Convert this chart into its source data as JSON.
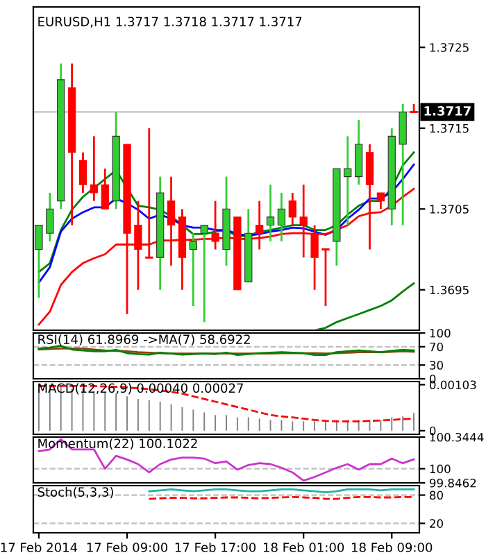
{
  "chart_data": [
    {
      "type": "candlestick",
      "title": "EURUSD,H1 1.3717 1.3718 1.3717 1.3717",
      "categories": [
        null,
        null,
        null,
        null,
        null,
        null,
        null,
        null,
        null,
        null,
        null,
        null,
        null,
        null,
        null,
        null,
        null,
        null,
        null,
        null,
        null,
        null,
        null,
        null,
        null,
        null,
        null,
        null,
        null,
        null,
        null,
        null,
        null,
        null,
        null
      ],
      "ohlc": [
        [
          1.37,
          1.3703,
          1.3694,
          1.3703
        ],
        [
          1.3702,
          1.3707,
          1.3701,
          1.3705
        ],
        [
          1.3706,
          1.3723,
          1.3705,
          1.3721
        ],
        [
          1.372,
          1.3723,
          1.3703,
          1.3712
        ],
        [
          1.3711,
          1.3712,
          1.3707,
          1.3708
        ],
        [
          1.3708,
          1.3714,
          1.3706,
          1.3707
        ],
        [
          1.3708,
          1.371,
          1.3705,
          1.3705
        ],
        [
          1.3706,
          1.3717,
          1.3705,
          1.3714
        ],
        [
          1.3713,
          1.3713,
          1.3692,
          1.3702
        ],
        [
          1.3703,
          1.3706,
          1.3695,
          1.37
        ],
        [
          1.3699,
          1.3715,
          1.3699,
          1.3699
        ],
        [
          1.3699,
          1.3709,
          1.3695,
          1.3707
        ],
        [
          1.3706,
          1.3709,
          1.3698,
          1.3703
        ],
        [
          1.3704,
          1.3705,
          1.3695,
          1.3699
        ],
        [
          1.37,
          1.3702,
          1.3693,
          1.3701
        ],
        [
          1.3702,
          1.3703,
          1.3691,
          1.3703
        ],
        [
          1.3702,
          1.3706,
          1.37,
          1.3701
        ],
        [
          1.37,
          1.3709,
          1.3698,
          1.3705
        ],
        [
          1.3704,
          1.3704,
          1.3695,
          1.3695
        ],
        [
          1.3696,
          1.3705,
          1.3696,
          1.3702
        ],
        [
          1.3703,
          1.3706,
          1.37,
          1.3702
        ],
        [
          1.3703,
          1.3708,
          1.3701,
          1.3704
        ],
        [
          1.3703,
          1.3707,
          1.3701,
          1.3705
        ],
        [
          1.3706,
          1.3707,
          1.3703,
          1.3704
        ],
        [
          1.3704,
          1.3708,
          1.3699,
          1.3703
        ],
        [
          1.3702,
          1.3703,
          1.3695,
          1.3699
        ],
        [
          1.37,
          1.37,
          1.3693,
          1.37
        ],
        [
          1.3701,
          1.371,
          1.3698,
          1.371
        ],
        [
          1.3709,
          1.3714,
          1.3703,
          1.371
        ],
        [
          1.3709,
          1.3716,
          1.3708,
          1.3713
        ],
        [
          1.3712,
          1.3713,
          1.37,
          1.3708
        ],
        [
          1.3707,
          1.3707,
          1.3705,
          1.3706
        ],
        [
          1.3705,
          1.3715,
          1.3703,
          1.3714
        ],
        [
          1.3713,
          1.3718,
          1.3703,
          1.3717
        ],
        [
          1.3717,
          1.3718,
          1.3717,
          1.3717
        ]
      ],
      "colors": [
        "#32cd32",
        "#32cd32",
        "#32cd32",
        "#ff0000",
        "#ff0000",
        "#ff0000",
        "#ff0000",
        "#32cd32",
        "#ff0000",
        "#ff0000",
        "#ff0000",
        "#32cd32",
        "#ff0000",
        "#ff0000",
        "#32cd32",
        "#32cd32",
        "#ff0000",
        "#32cd32",
        "#ff0000",
        "#32cd32",
        "#ff0000",
        "#32cd32",
        "#32cd32",
        "#ff0000",
        "#ff0000",
        "#ff0000",
        "#ff0000",
        "#32cd32",
        "#32cd32",
        "#32cd32",
        "#ff0000",
        "#ff0000",
        "#32cd32",
        "#32cd32",
        "#ff0000"
      ],
      "series": [
        {
          "type": "line",
          "color": "#008000",
          "values": [
            1.36972,
            1.36983,
            1.37024,
            1.37049,
            1.37065,
            1.37076,
            1.37087,
            1.37098,
            1.37076,
            1.37054,
            1.37052,
            1.37049,
            1.37041,
            1.3703,
            1.37019,
            1.37019,
            1.37022,
            1.37024,
            1.37016,
            1.37017,
            1.37022,
            1.37024,
            1.37027,
            1.3703,
            1.3703,
            1.37024,
            1.37024,
            1.3703,
            1.37043,
            1.37054,
            1.3706,
            1.3706,
            1.37076,
            1.37104,
            1.3712
          ]
        },
        {
          "type": "line",
          "color": "#0000ff",
          "values": [
            1.36959,
            1.36978,
            1.37022,
            1.37038,
            1.37046,
            1.37052,
            1.37052,
            1.37063,
            1.37057,
            1.37049,
            1.37038,
            1.37043,
            1.37038,
            1.3703,
            1.37027,
            1.37027,
            1.37024,
            1.37024,
            1.37019,
            1.37017,
            1.37019,
            1.37022,
            1.37024,
            1.37027,
            1.37026,
            1.37022,
            1.37018,
            1.37024,
            1.37038,
            1.37049,
            1.37063,
            1.37063,
            1.37071,
            1.37087,
            1.37105
          ]
        },
        {
          "type": "line",
          "color": "#ff0000",
          "values": [
            1.36907,
            1.36923,
            1.36956,
            1.36972,
            1.36983,
            1.36989,
            1.36994,
            1.37006,
            1.37006,
            1.37006,
            1.37006,
            1.37011,
            1.37011,
            1.37012,
            1.37012,
            1.37013,
            1.37013,
            1.37015,
            1.37013,
            1.37013,
            1.37014,
            1.37016,
            1.37019,
            1.3702,
            1.3702,
            1.37019,
            1.37019,
            1.37024,
            1.3703,
            1.37041,
            1.37045,
            1.37046,
            1.37054,
            1.37065,
            1.37075
          ]
        },
        {
          "type": "line",
          "color": "#008000",
          "values": [
            null,
            null,
            null,
            null,
            null,
            null,
            null,
            null,
            null,
            null,
            null,
            null,
            null,
            null,
            null,
            null,
            null,
            null,
            null,
            null,
            null,
            null,
            null,
            null,
            null,
            1.369,
            1.36903,
            1.3691,
            1.36915,
            1.3692,
            1.36925,
            1.3693,
            1.36937,
            1.36948,
            1.36958
          ]
        }
      ],
      "ylim": [
        1.369,
        1.373
      ],
      "yticks": [
        1.3695,
        1.3705,
        1.3715,
        1.3725
      ],
      "ref_lines": [
        {
          "axis": "y",
          "value": 1.3717,
          "label": "1.3717",
          "color": "#c0c0c0"
        }
      ],
      "tick_labels": "y"
    },
    {
      "type": "line",
      "title": "RSI(14) 61.8969 ->MA(7) 58.6922",
      "categories": [
        null,
        null,
        null,
        null,
        null,
        null,
        null,
        null,
        null,
        null,
        null,
        null,
        null,
        null,
        null,
        null,
        null,
        null,
        null,
        null,
        null,
        null,
        null,
        null,
        null,
        null,
        null,
        null,
        null,
        null,
        null,
        null,
        null,
        null,
        null
      ],
      "series": [
        {
          "color": "#8b4513",
          "values": [
            64,
            65,
            66,
            66,
            66,
            64,
            62,
            61,
            60,
            58,
            57,
            56,
            55,
            55,
            55,
            55,
            55,
            55,
            55,
            55,
            55,
            55,
            56,
            56,
            56,
            56,
            55,
            56,
            57,
            58,
            58,
            58,
            59,
            60,
            59
          ]
        },
        {
          "color": "#008000",
          "values": [
            66,
            68,
            72,
            64,
            62,
            60,
            60,
            63,
            56,
            54,
            53,
            57,
            55,
            53,
            54,
            55,
            54,
            57,
            52,
            54,
            56,
            57,
            58,
            57,
            56,
            52,
            52,
            58,
            60,
            62,
            60,
            58,
            61,
            63,
            62
          ]
        }
      ],
      "ylim": [
        0,
        100
      ],
      "yticks": [
        0,
        30,
        70,
        100
      ],
      "ref_lines": [
        {
          "axis": "y",
          "value": 70,
          "color": "#c0c0c0",
          "line_style": "dashed"
        },
        {
          "axis": "y",
          "value": 30,
          "color": "#c0c0c0",
          "line_style": "dashed"
        }
      ],
      "tick_labels": "y"
    },
    {
      "type": "bar",
      "title": "MACD(12,26,9) 0.00040 0.00027",
      "categories": [
        null,
        null,
        null,
        null,
        null,
        null,
        null,
        null,
        null,
        null,
        null,
        null,
        null,
        null,
        null,
        null,
        null,
        null,
        null,
        null,
        null,
        null,
        null,
        null,
        null,
        null,
        null,
        null,
        null,
        null,
        null,
        null,
        null,
        null,
        null
      ],
      "series": [
        {
          "color": "#808080",
          "values": [
            0.00103,
            0.00103,
            0.001,
            0.00094,
            0.00094,
            0.00089,
            0.00085,
            0.00083,
            0.00077,
            0.00071,
            0.00068,
            0.00065,
            0.00059,
            0.00053,
            0.00047,
            0.00041,
            0.00035,
            0.00035,
            0.0003,
            0.0003,
            0.00027,
            0.00024,
            0.00024,
            0.00021,
            0.00021,
            0.00021,
            0.00021,
            0.00024,
            0.00024,
            0.00024,
            0.00024,
            0.00024,
            0.0003,
            0.00032,
            0.0004
          ]
        },
        {
          "type": "line",
          "color": "#ff0000",
          "line_style": "dashed",
          "values": [
            0.001,
            0.001,
            0.001,
            0.001,
            0.001,
            0.001,
            0.00099,
            0.00098,
            0.00097,
            0.00095,
            0.00093,
            0.0009,
            0.00087,
            0.00083,
            0.00077,
            0.00071,
            0.00065,
            0.00059,
            0.00053,
            0.00047,
            0.00041,
            0.00035,
            0.00032,
            0.0003,
            0.00027,
            0.00024,
            0.00022,
            0.00021,
            0.00021,
            0.00021,
            0.00022,
            0.00023,
            0.00024,
            0.00026,
            0.00027
          ]
        }
      ],
      "ylim": [
        -8e-05,
        0.0011
      ],
      "yticks": [
        0,
        0.00103
      ],
      "tick_labels": "y"
    },
    {
      "type": "line",
      "title": "Momentum(22) 100.1022",
      "categories": [
        null,
        null,
        null,
        null,
        null,
        null,
        null,
        null,
        null,
        null,
        null,
        null,
        null,
        null,
        null,
        null,
        null,
        null,
        null,
        null,
        null,
        null,
        null,
        null,
        null,
        null,
        null,
        null,
        null,
        null,
        null,
        null,
        null,
        null,
        null
      ],
      "series": [
        {
          "color": "#cc33cc",
          "values": [
            100.19,
            100.21,
            100.32,
            100.21,
            100.21,
            100.21,
            100.0,
            100.14,
            100.1,
            100.05,
            99.96,
            100.05,
            100.1,
            100.12,
            100.12,
            100.11,
            100.06,
            100.08,
            99.99,
            100.04,
            100.06,
            100.05,
            100.01,
            99.96,
            99.87,
            99.91,
            99.96,
            100.01,
            100.05,
            99.99,
            100.05,
            100.05,
            100.11,
            100.06,
            100.1022
          ]
        }
      ],
      "ylim": [
        99.8462,
        100.3444
      ],
      "yticks": [
        99.8462,
        100,
        100.3444
      ],
      "ref_lines": [
        {
          "axis": "y",
          "value": 100,
          "color": "#c0c0c0",
          "line_style": "dashed"
        }
      ],
      "tick_labels": "y"
    },
    {
      "type": "line",
      "title": "Stoch(5,3,3)",
      "categories": [
        "17 Feb 2014",
        null,
        null,
        null,
        null,
        null,
        null,
        null,
        "17 Feb 09:00",
        null,
        null,
        null,
        null,
        null,
        null,
        null,
        "17 Feb 17:00",
        null,
        null,
        null,
        null,
        null,
        null,
        null,
        "18 Feb 01:00",
        null,
        null,
        null,
        null,
        null,
        null,
        null,
        "18 Feb 09:00",
        null,
        null
      ],
      "series": [
        {
          "color": "#20b2aa",
          "values": [
            null,
            null,
            null,
            null,
            null,
            null,
            null,
            null,
            null,
            null,
            88,
            90,
            92,
            90,
            88,
            90,
            92,
            92,
            90,
            88,
            88,
            90,
            92,
            92,
            90,
            88,
            86,
            88,
            92,
            92,
            92,
            90,
            92,
            92,
            92
          ]
        },
        {
          "color": "#ff0000",
          "line_style": "dashed",
          "values": [
            null,
            null,
            null,
            null,
            null,
            null,
            null,
            null,
            null,
            null,
            72,
            73,
            74,
            74,
            73,
            73,
            74,
            75,
            75,
            74,
            73,
            74,
            75,
            76,
            75,
            74,
            72,
            72,
            74,
            76,
            76,
            75,
            75,
            76,
            76
          ]
        }
      ],
      "ylim": [
        0,
        100
      ],
      "yticks": [
        20,
        80
      ],
      "ref_lines": [
        {
          "axis": "y",
          "value": 80,
          "color": "#c0c0c0",
          "line_style": "dashed"
        },
        {
          "axis": "y",
          "value": 20,
          "color": "#c0c0c0",
          "line_style": "dashed"
        }
      ]
    }
  ]
}
